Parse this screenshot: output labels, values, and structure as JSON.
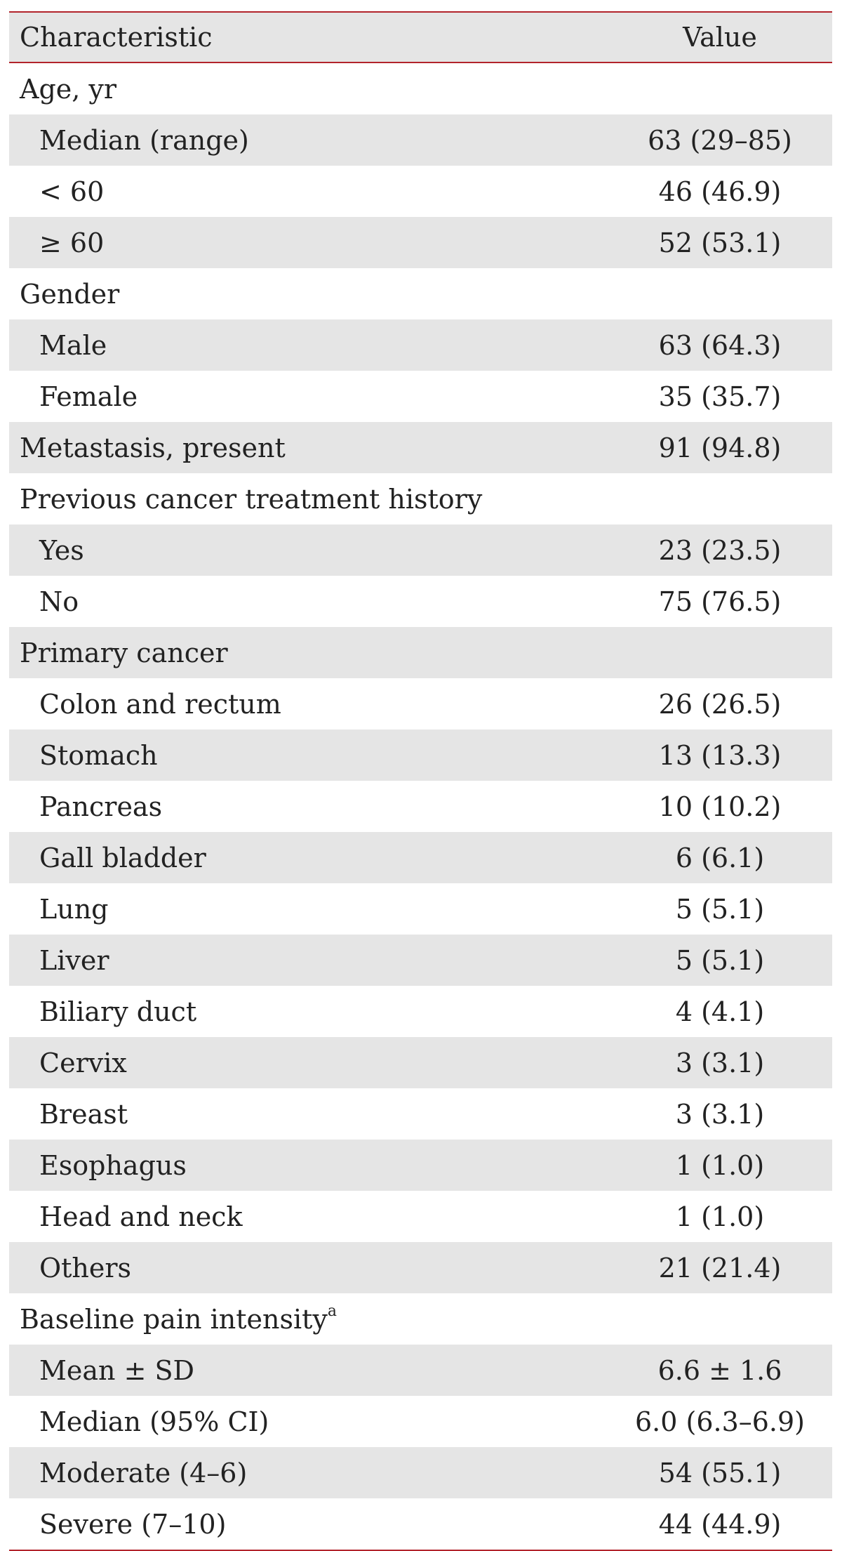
{
  "table": {
    "headers": {
      "characteristic": "Characteristic",
      "value": "Value"
    },
    "rows": [
      {
        "label": "Age, yr",
        "value": "",
        "level": 0
      },
      {
        "label": "Median (range)",
        "value": "63 (29–85)",
        "level": 1
      },
      {
        "label": "< 60",
        "value": "46 (46.9)",
        "level": 1
      },
      {
        "label": "≥ 60",
        "value": "52 (53.1)",
        "level": 1
      },
      {
        "label": "Gender",
        "value": "",
        "level": 0
      },
      {
        "label": "Male",
        "value": "63 (64.3)",
        "level": 1
      },
      {
        "label": "Female",
        "value": "35 (35.7)",
        "level": 1
      },
      {
        "label": "Metastasis, present",
        "value": "91 (94.8)",
        "level": 0
      },
      {
        "label": "Previous cancer treatment history",
        "value": "",
        "level": 0
      },
      {
        "label": "Yes",
        "value": "23 (23.5)",
        "level": 1
      },
      {
        "label": "No",
        "value": "75 (76.5)",
        "level": 1
      },
      {
        "label": "Primary cancer",
        "value": "",
        "level": 0
      },
      {
        "label": "Colon and rectum",
        "value": "26 (26.5)",
        "level": 1
      },
      {
        "label": "Stomach",
        "value": "13 (13.3)",
        "level": 1
      },
      {
        "label": "Pancreas",
        "value": "10 (10.2)",
        "level": 1
      },
      {
        "label": "Gall bladder",
        "value": "6 (6.1)",
        "level": 1
      },
      {
        "label": "Lung",
        "value": "5 (5.1)",
        "level": 1
      },
      {
        "label": "Liver",
        "value": "5 (5.1)",
        "level": 1
      },
      {
        "label": "Biliary duct",
        "value": "4 (4.1)",
        "level": 1
      },
      {
        "label": "Cervix",
        "value": "3 (3.1)",
        "level": 1
      },
      {
        "label": "Breast",
        "value": "3 (3.1)",
        "level": 1
      },
      {
        "label": "Esophagus",
        "value": "1 (1.0)",
        "level": 1
      },
      {
        "label": "Head and neck",
        "value": "1 (1.0)",
        "level": 1
      },
      {
        "label": "Others",
        "value": "21 (21.4)",
        "level": 1
      },
      {
        "label": "Baseline pain intensity",
        "value": "",
        "level": 0,
        "sup": "a"
      },
      {
        "label": "Mean ± SD",
        "value": "6.6 ± 1.6",
        "level": 1
      },
      {
        "label": "Median (95% CI)",
        "value": "6.0 (6.3–6.9)",
        "level": 1
      },
      {
        "label": "Moderate (4–6)",
        "value": "54 (55.1)",
        "level": 1
      },
      {
        "label": "Severe (7–10)",
        "value": "44 (44.9)",
        "level": 1
      }
    ]
  },
  "colors": {
    "rule": "#b2232b",
    "shade": "#e5e5e5",
    "text": "#222222"
  }
}
